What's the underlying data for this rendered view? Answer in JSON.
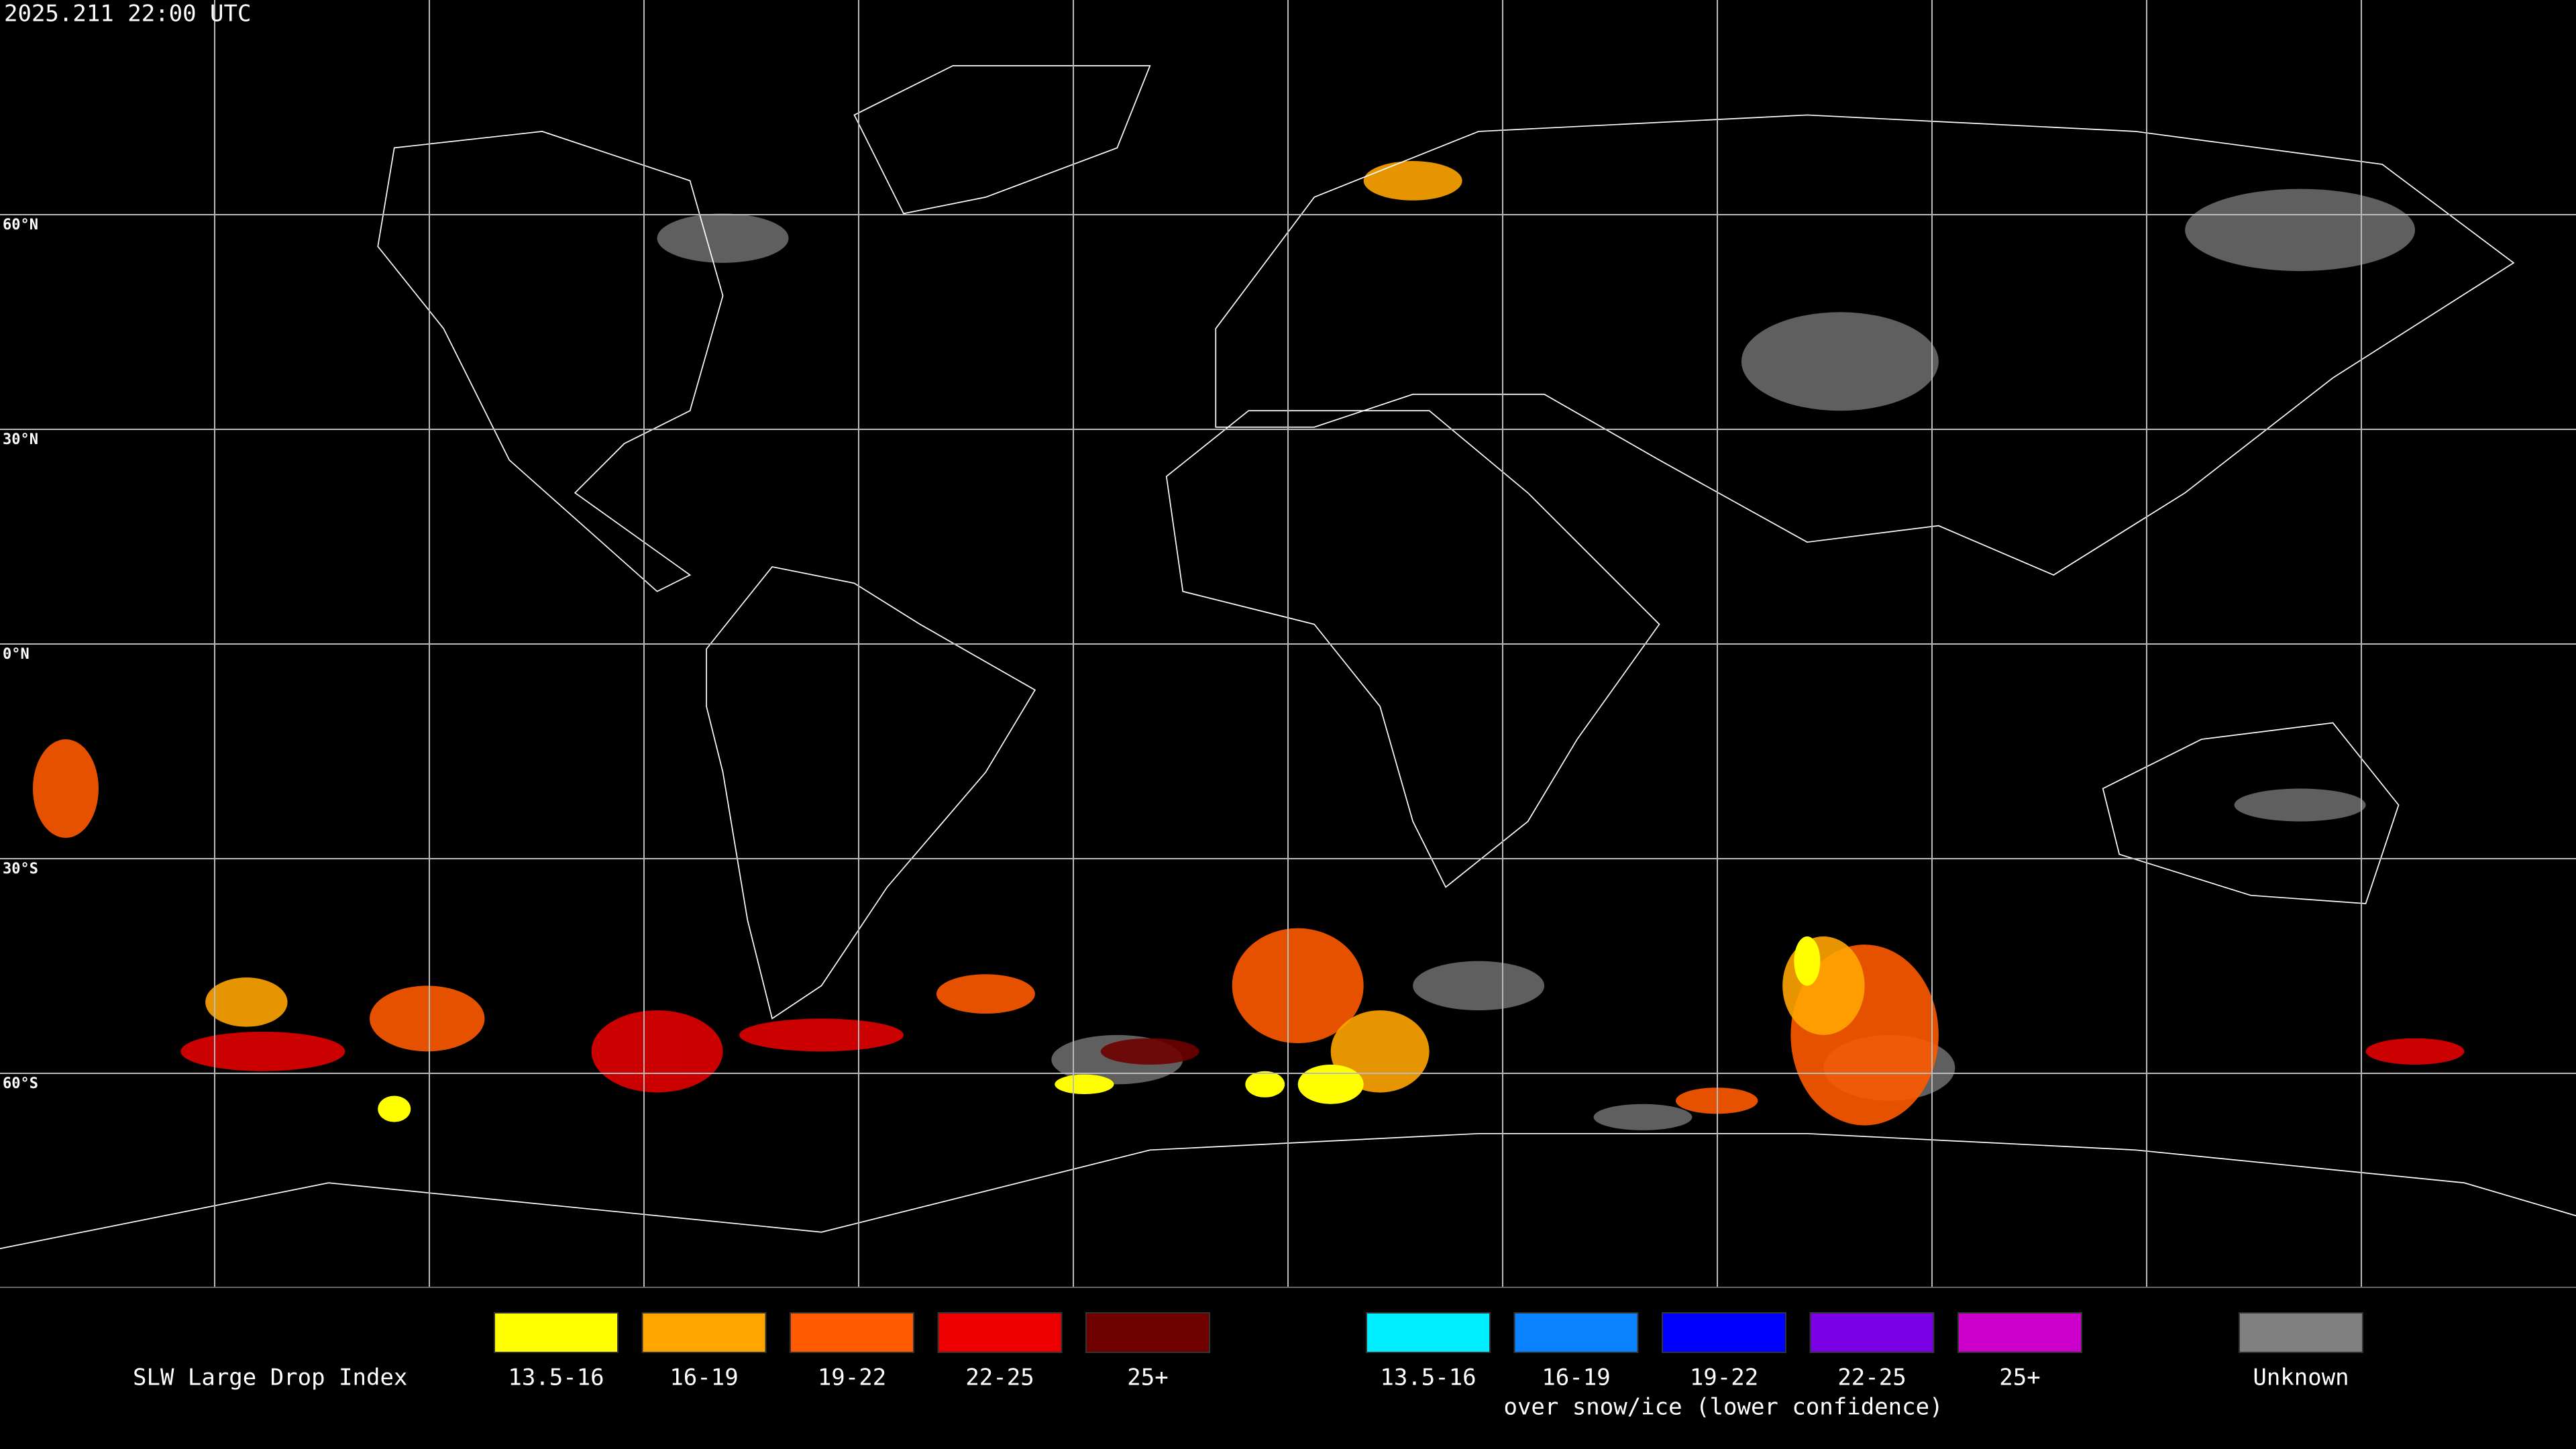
{
  "header": {
    "timestamp": "2025.211 22:00 UTC"
  },
  "map": {
    "lat_labels": [
      "60°N",
      "30°N",
      "0°N",
      "30°S",
      "60°S"
    ]
  },
  "legend": {
    "title": "SLW Large Drop Index",
    "items": [
      {
        "label": "13.5-16",
        "color": "#ffff00"
      },
      {
        "label": "16-19",
        "color": "#ffa500"
      },
      {
        "label": "19-22",
        "color": "#ff5a00"
      },
      {
        "label": "22-25",
        "color": "#ee0000"
      },
      {
        "label": "25+",
        "color": "#6e0000"
      }
    ],
    "snow_items": [
      {
        "label": "13.5-16",
        "color": "#00eeff"
      },
      {
        "label": "16-19",
        "color": "#0a82ff"
      },
      {
        "label": "19-22",
        "color": "#0000ff"
      },
      {
        "label": "22-25",
        "color": "#7a00e6"
      },
      {
        "label": "25+",
        "color": "#cc00cc"
      }
    ],
    "snow_note": "over snow/ice (lower confidence)",
    "unknown": {
      "label": "Unknown",
      "color": "#808080"
    }
  }
}
